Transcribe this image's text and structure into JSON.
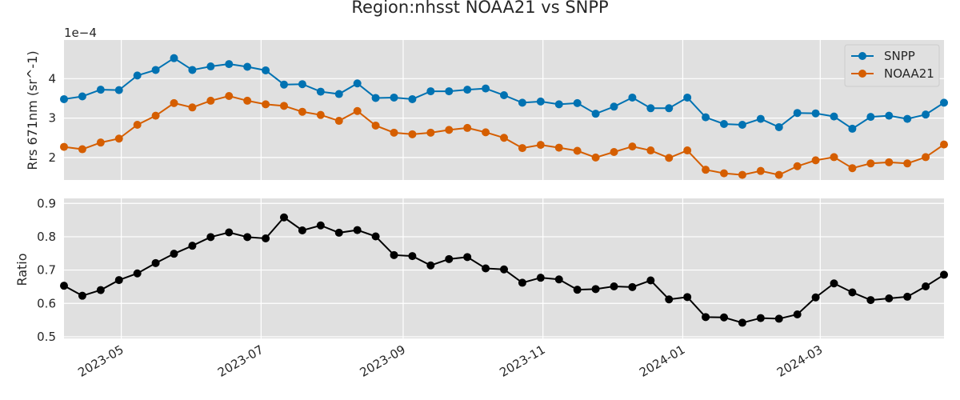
{
  "figure": {
    "title": "Region:nhsst NOAA21 vs SNPP"
  },
  "chart_data": [
    {
      "type": "line",
      "title": "",
      "xlabel": "",
      "ylabel": "Rrs 671nm (sr^-1)",
      "offset_label": "1e−4",
      "ylim": [
        1.43,
        4.98
      ],
      "yticks": [
        2,
        3,
        4
      ],
      "ytick_labels": [
        "2",
        "3",
        "4"
      ],
      "xlim": [
        "2023-04-06",
        "2024-04-24"
      ],
      "grid": true,
      "legend": "top-right",
      "x": [
        "2023-04-06",
        "2023-04-14",
        "2023-04-22",
        "2023-04-30",
        "2023-05-08",
        "2023-05-16",
        "2023-05-24",
        "2023-06-01",
        "2023-06-09",
        "2023-06-17",
        "2023-06-25",
        "2023-07-03",
        "2023-07-11",
        "2023-07-19",
        "2023-07-27",
        "2023-08-04",
        "2023-08-12",
        "2023-08-20",
        "2023-08-28",
        "2023-09-05",
        "2023-09-13",
        "2023-09-21",
        "2023-09-29",
        "2023-10-07",
        "2023-10-15",
        "2023-10-23",
        "2023-10-31",
        "2023-11-08",
        "2023-11-16",
        "2023-11-24",
        "2023-12-02",
        "2023-12-10",
        "2023-12-18",
        "2023-12-26",
        "2024-01-03",
        "2024-01-11",
        "2024-01-19",
        "2024-01-27",
        "2024-02-04",
        "2024-02-12",
        "2024-02-20",
        "2024-02-28",
        "2024-03-07",
        "2024-03-15",
        "2024-03-23",
        "2024-03-31",
        "2024-04-08",
        "2024-04-16",
        "2024-04-24"
      ],
      "series": [
        {
          "name": "SNPP",
          "color": "#0072b2",
          "values": [
            3.48,
            3.55,
            3.72,
            3.71,
            4.08,
            4.22,
            4.52,
            4.22,
            4.31,
            4.37,
            4.3,
            4.21,
            3.85,
            3.86,
            3.67,
            3.61,
            3.88,
            3.51,
            3.52,
            3.48,
            3.68,
            3.68,
            3.72,
            3.75,
            3.58,
            3.39,
            3.42,
            3.35,
            3.38,
            3.11,
            3.29,
            3.52,
            3.25,
            3.25,
            3.52,
            3.02,
            2.85,
            2.83,
            2.98,
            2.77,
            3.13,
            3.12,
            3.04,
            2.73,
            3.03,
            3.06,
            2.98,
            3.09,
            3.39
          ]
        },
        {
          "name": "NOAA21",
          "color": "#d55e00",
          "values": [
            2.27,
            2.21,
            2.38,
            2.48,
            2.83,
            3.06,
            3.38,
            3.27,
            3.44,
            3.56,
            3.44,
            3.35,
            3.31,
            3.16,
            3.08,
            2.93,
            3.18,
            2.81,
            2.63,
            2.59,
            2.63,
            2.7,
            2.75,
            2.64,
            2.5,
            2.24,
            2.32,
            2.25,
            2.17,
            2.0,
            2.14,
            2.28,
            2.18,
            1.99,
            2.18,
            1.69,
            1.6,
            1.56,
            1.66,
            1.56,
            1.78,
            1.93,
            2.01,
            1.73,
            1.85,
            1.88,
            1.85,
            2.01,
            2.33
          ]
        }
      ]
    },
    {
      "type": "line",
      "title": "",
      "xlabel": "",
      "ylabel": "Ratio",
      "ylim": [
        0.495,
        0.915
      ],
      "yticks": [
        0.5,
        0.6,
        0.7,
        0.8,
        0.9
      ],
      "ytick_labels": [
        "0.5",
        "0.6",
        "0.7",
        "0.8",
        "0.9"
      ],
      "xlim": [
        "2023-04-06",
        "2024-04-24"
      ],
      "grid": true,
      "x": [
        "2023-04-06",
        "2023-04-14",
        "2023-04-22",
        "2023-04-30",
        "2023-05-08",
        "2023-05-16",
        "2023-05-24",
        "2023-06-01",
        "2023-06-09",
        "2023-06-17",
        "2023-06-25",
        "2023-07-03",
        "2023-07-11",
        "2023-07-19",
        "2023-07-27",
        "2023-08-04",
        "2023-08-12",
        "2023-08-20",
        "2023-08-28",
        "2023-09-05",
        "2023-09-13",
        "2023-09-21",
        "2023-09-29",
        "2023-10-07",
        "2023-10-15",
        "2023-10-23",
        "2023-10-31",
        "2023-11-08",
        "2023-11-16",
        "2023-11-24",
        "2023-12-02",
        "2023-12-10",
        "2023-12-18",
        "2023-12-26",
        "2024-01-03",
        "2024-01-11",
        "2024-01-19",
        "2024-01-27",
        "2024-02-04",
        "2024-02-12",
        "2024-02-20",
        "2024-02-28",
        "2024-03-07",
        "2024-03-15",
        "2024-03-23",
        "2024-03-31",
        "2024-04-08",
        "2024-04-16",
        "2024-04-24"
      ],
      "series": [
        {
          "color": "#000000",
          "values": [
            0.653,
            0.623,
            0.64,
            0.67,
            0.69,
            0.721,
            0.749,
            0.773,
            0.799,
            0.813,
            0.799,
            0.795,
            0.858,
            0.819,
            0.834,
            0.812,
            0.82,
            0.801,
            0.745,
            0.742,
            0.714,
            0.733,
            0.739,
            0.705,
            0.702,
            0.662,
            0.677,
            0.672,
            0.641,
            0.643,
            0.651,
            0.649,
            0.669,
            0.612,
            0.619,
            0.559,
            0.558,
            0.542,
            0.556,
            0.554,
            0.567,
            0.618,
            0.66,
            0.633,
            0.61,
            0.615,
            0.62,
            0.651,
            0.686
          ]
        }
      ]
    }
  ],
  "xaxis": {
    "ticks": [
      "2023-05-01",
      "2023-07-01",
      "2023-09-01",
      "2023-11-01",
      "2024-01-01",
      "2024-03-01"
    ],
    "tick_labels": [
      "2023-05",
      "2023-07",
      "2023-09",
      "2023-11",
      "2024-01",
      "2024-03"
    ]
  },
  "style": {
    "background": "#e0e0e0",
    "grid": "#ffffff",
    "text": "#262626"
  }
}
